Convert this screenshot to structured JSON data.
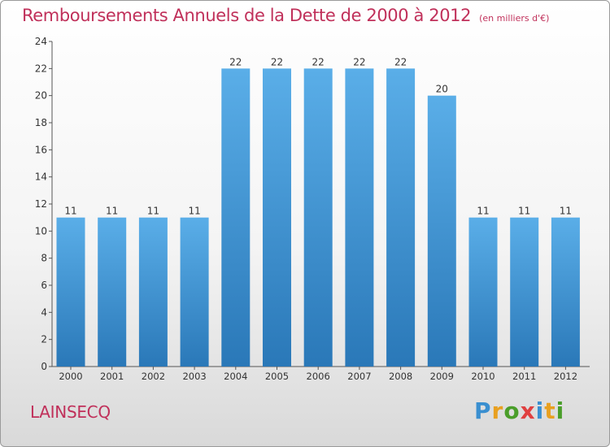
{
  "title": "Remboursements Annuels de la Dette de 2000 à 2012",
  "unit_note": "(en milliers d'€)",
  "commune": "LAINSECQ",
  "logo": "Proxiti",
  "colors": {
    "bar_light": "#5aaee8",
    "bar_dark": "#2a78b8",
    "title": "#c0305a"
  },
  "chart_data": {
    "type": "bar",
    "title": "Remboursements Annuels de la Dette de 2000 à 2012",
    "subtitle": "(en milliers d'€)",
    "categories": [
      "2000",
      "2001",
      "2002",
      "2003",
      "2004",
      "2005",
      "2006",
      "2007",
      "2008",
      "2009",
      "2010",
      "2011",
      "2012"
    ],
    "values": [
      11,
      11,
      11,
      11,
      22,
      22,
      22,
      22,
      22,
      20,
      11,
      11,
      11
    ],
    "ylim": [
      0,
      24
    ],
    "yticks": [
      0,
      2,
      4,
      6,
      8,
      10,
      12,
      14,
      16,
      18,
      20,
      22,
      24
    ],
    "grid": false
  }
}
